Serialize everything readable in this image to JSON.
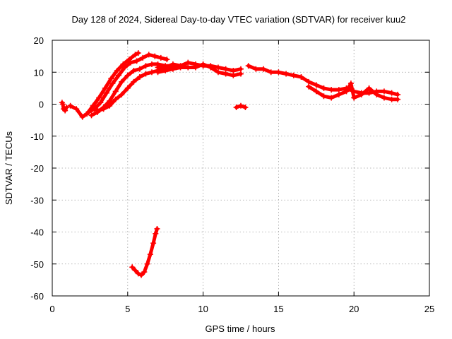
{
  "chart_data": {
    "type": "scatter",
    "title": "Day 128 of 2024, Sidereal Day-to-day VTEC variation (SDTVAR) for receiver kuu2",
    "xlabel": "GPS time / hours",
    "ylabel": "SDTVAR / TECUs",
    "xlim": [
      0,
      25
    ],
    "ylim": [
      -60,
      20
    ],
    "xticks": [
      0,
      5,
      10,
      15,
      20,
      25
    ],
    "yticks": [
      -60,
      -50,
      -40,
      -30,
      -20,
      -10,
      0,
      10,
      20
    ],
    "grid": true,
    "marker": "plus",
    "color": "#ff0000",
    "series": [
      {
        "name": "early-isolated",
        "points": [
          [
            0.65,
            0.5
          ],
          [
            0.7,
            0.0
          ],
          [
            0.75,
            -1.5
          ],
          [
            0.85,
            -2.0
          ],
          [
            0.95,
            -1.0
          ]
        ]
      },
      {
        "name": "arc-a",
        "points": [
          [
            1.2,
            -0.5
          ],
          [
            1.6,
            -1.5
          ],
          [
            2.0,
            -4.0
          ],
          [
            2.3,
            -3.0
          ],
          [
            2.7,
            -0.5
          ],
          [
            3.1,
            2.0
          ],
          [
            3.5,
            5.0
          ],
          [
            3.9,
            8.0
          ],
          [
            4.3,
            10.5
          ],
          [
            4.7,
            12.5
          ],
          [
            5.1,
            14.0
          ],
          [
            5.5,
            15.5
          ],
          [
            5.7,
            16.0
          ]
        ]
      },
      {
        "name": "arc-b",
        "points": [
          [
            2.4,
            -2.5
          ],
          [
            2.8,
            -1.5
          ],
          [
            3.2,
            0.5
          ],
          [
            3.6,
            3.5
          ],
          [
            4.0,
            6.5
          ],
          [
            4.4,
            9.0
          ],
          [
            4.8,
            11.5
          ],
          [
            5.2,
            13.0
          ],
          [
            5.6,
            13.5
          ],
          [
            6.0,
            14.5
          ],
          [
            6.4,
            15.5
          ],
          [
            6.8,
            15.0
          ],
          [
            7.2,
            14.5
          ],
          [
            7.6,
            14.0
          ]
        ]
      },
      {
        "name": "arc-c",
        "points": [
          [
            2.6,
            -3.5
          ],
          [
            3.0,
            -2.5
          ],
          [
            3.4,
            -1.0
          ],
          [
            3.8,
            1.0
          ],
          [
            4.2,
            4.0
          ],
          [
            4.6,
            7.0
          ],
          [
            5.0,
            9.0
          ],
          [
            5.4,
            10.5
          ],
          [
            5.8,
            11.0
          ],
          [
            6.2,
            12.0
          ],
          [
            6.6,
            12.5
          ],
          [
            7.0,
            12.5
          ],
          [
            7.5,
            12.0
          ],
          [
            8.0,
            12.0
          ]
        ]
      },
      {
        "name": "arc-d",
        "points": [
          [
            3.0,
            -2.0
          ],
          [
            3.4,
            -1.5
          ],
          [
            3.8,
            -0.5
          ],
          [
            4.2,
            1.5
          ],
          [
            4.6,
            3.0
          ],
          [
            5.0,
            5.0
          ],
          [
            5.4,
            7.0
          ],
          [
            5.8,
            8.5
          ],
          [
            6.2,
            9.5
          ],
          [
            6.6,
            10.0
          ],
          [
            7.0,
            10.5
          ],
          [
            7.6,
            11.0
          ],
          [
            8.2,
            11.5
          ],
          [
            8.8,
            12.0
          ]
        ]
      },
      {
        "name": "main-trend",
        "points": [
          [
            7.0,
            11.5
          ],
          [
            7.5,
            11.5
          ],
          [
            8.0,
            12.5
          ],
          [
            8.5,
            12.0
          ],
          [
            9.0,
            13.0
          ],
          [
            9.5,
            12.5
          ],
          [
            10.0,
            12.0
          ],
          [
            10.5,
            12.0
          ],
          [
            11.0,
            11.5
          ],
          [
            11.5,
            11.0
          ],
          [
            12.0,
            10.5
          ],
          [
            12.5,
            11.0
          ]
        ]
      },
      {
        "name": "main-trend-lower",
        "points": [
          [
            7.0,
            10.0
          ],
          [
            7.5,
            10.5
          ],
          [
            8.0,
            11.0
          ],
          [
            8.5,
            11.5
          ],
          [
            9.0,
            11.5
          ],
          [
            9.5,
            11.5
          ],
          [
            10.0,
            12.5
          ],
          [
            10.5,
            11.5
          ],
          [
            11.0,
            10.0
          ],
          [
            11.5,
            9.5
          ],
          [
            12.0,
            9.0
          ],
          [
            12.5,
            9.5
          ]
        ]
      },
      {
        "name": "small-segment",
        "points": [
          [
            12.2,
            -1.0
          ],
          [
            12.5,
            -0.5
          ],
          [
            12.8,
            -1.0
          ]
        ]
      },
      {
        "name": "late-trend",
        "points": [
          [
            13.0,
            12.0
          ],
          [
            13.5,
            11.0
          ],
          [
            14.0,
            11.0
          ],
          [
            14.5,
            10.0
          ],
          [
            15.0,
            10.0
          ],
          [
            15.5,
            9.5
          ],
          [
            16.0,
            9.0
          ],
          [
            16.5,
            8.5
          ],
          [
            17.0,
            7.0
          ],
          [
            17.5,
            6.0
          ],
          [
            18.0,
            5.0
          ],
          [
            18.5,
            4.5
          ],
          [
            19.0,
            4.5
          ],
          [
            19.5,
            5.0
          ],
          [
            20.0,
            4.0
          ],
          [
            20.5,
            3.5
          ],
          [
            21.0,
            3.5
          ],
          [
            21.5,
            4.0
          ],
          [
            22.0,
            4.0
          ],
          [
            22.5,
            3.5
          ],
          [
            22.9,
            3.0
          ]
        ]
      },
      {
        "name": "late-lower",
        "points": [
          [
            17.0,
            5.5
          ],
          [
            17.5,
            4.0
          ],
          [
            18.0,
            2.5
          ],
          [
            18.5,
            2.0
          ],
          [
            19.0,
            3.0
          ],
          [
            19.5,
            4.0
          ],
          [
            19.8,
            6.5
          ],
          [
            20.0,
            2.0
          ],
          [
            20.5,
            3.0
          ],
          [
            21.0,
            5.0
          ],
          [
            21.5,
            3.0
          ],
          [
            22.0,
            2.0
          ],
          [
            22.5,
            1.5
          ],
          [
            22.9,
            1.5
          ]
        ]
      },
      {
        "name": "negative-dip",
        "points": [
          [
            5.3,
            -51.0
          ],
          [
            5.5,
            -52.0
          ],
          [
            5.7,
            -53.0
          ],
          [
            5.9,
            -53.5
          ],
          [
            6.1,
            -52.5
          ],
          [
            6.3,
            -50.0
          ],
          [
            6.5,
            -47.0
          ],
          [
            6.7,
            -43.5
          ],
          [
            6.85,
            -40.5
          ],
          [
            6.95,
            -39.0
          ]
        ]
      }
    ]
  }
}
